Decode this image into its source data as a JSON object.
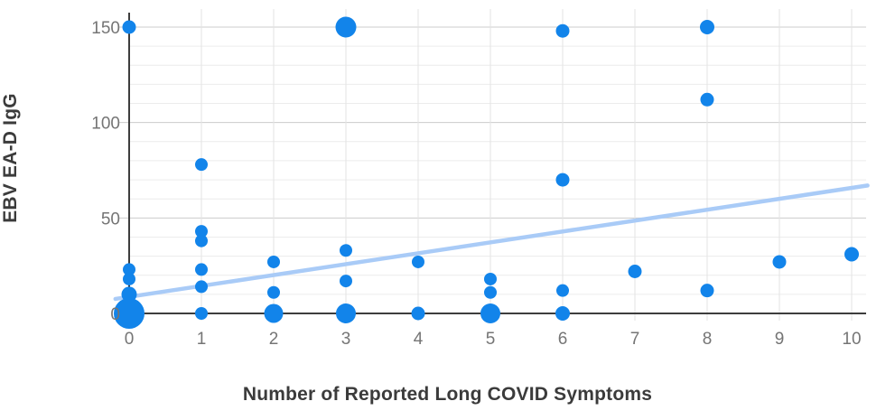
{
  "chart_data": {
    "type": "scatter",
    "title": "",
    "xlabel": "Number of Reported Long COVID Symptoms",
    "ylabel": "EBV EA-D IgG",
    "xlim": [
      -0.19,
      10.22
    ],
    "ylim": [
      0,
      159
    ],
    "x_ticks": [
      "0",
      "1",
      "2",
      "3",
      "4",
      "5",
      "6",
      "7",
      "8",
      "9",
      "10"
    ],
    "y_ticks": [
      "0",
      "50",
      "100",
      "150"
    ],
    "y_minor_step": 10,
    "grid": true,
    "legend": "none",
    "colors": {
      "point": "#1284ea",
      "trendline": "#a9cbf7",
      "axis_line": "#3d3d3d",
      "major_grid": "#cccccc",
      "minor_grid": "#ececec",
      "vertical_grid": "#e3e3e3",
      "tick_text": "#757575",
      "title_text": "#3b3b3b"
    },
    "points": [
      {
        "x": 0,
        "y": 150,
        "r": 7.5
      },
      {
        "x": 0,
        "y": 23,
        "r": 7
      },
      {
        "x": 0,
        "y": 18,
        "r": 7
      },
      {
        "x": 0,
        "y": 10,
        "r": 8.5
      },
      {
        "x": 0,
        "y": 0,
        "r": 17
      },
      {
        "x": 1,
        "y": 78,
        "r": 7
      },
      {
        "x": 1,
        "y": 43,
        "r": 7
      },
      {
        "x": 1,
        "y": 38,
        "r": 7
      },
      {
        "x": 1,
        "y": 23,
        "r": 7
      },
      {
        "x": 1,
        "y": 14,
        "r": 7
      },
      {
        "x": 1,
        "y": 0,
        "r": 7
      },
      {
        "x": 2,
        "y": 27,
        "r": 7
      },
      {
        "x": 2,
        "y": 11,
        "r": 7
      },
      {
        "x": 2,
        "y": 0,
        "r": 10.5
      },
      {
        "x": 3,
        "y": 150,
        "r": 11.5
      },
      {
        "x": 3,
        "y": 33,
        "r": 7
      },
      {
        "x": 3,
        "y": 17,
        "r": 7
      },
      {
        "x": 3,
        "y": 0,
        "r": 11
      },
      {
        "x": 4,
        "y": 27,
        "r": 7
      },
      {
        "x": 4,
        "y": 0,
        "r": 7.5
      },
      {
        "x": 5,
        "y": 18,
        "r": 7
      },
      {
        "x": 5,
        "y": 11,
        "r": 7
      },
      {
        "x": 5,
        "y": 0,
        "r": 11
      },
      {
        "x": 6,
        "y": 148,
        "r": 7.5
      },
      {
        "x": 6,
        "y": 70,
        "r": 7.5
      },
      {
        "x": 6,
        "y": 12,
        "r": 7
      },
      {
        "x": 6,
        "y": 0,
        "r": 8
      },
      {
        "x": 7,
        "y": 22,
        "r": 7.5
      },
      {
        "x": 8,
        "y": 150,
        "r": 8
      },
      {
        "x": 8,
        "y": 112,
        "r": 7.5
      },
      {
        "x": 8,
        "y": 12,
        "r": 7.5
      },
      {
        "x": 9,
        "y": 27,
        "r": 7.5
      },
      {
        "x": 10,
        "y": 31,
        "r": 8
      }
    ],
    "trendline": {
      "x1": -0.19,
      "y1": 7.6,
      "x2": 10.22,
      "y2": 67
    }
  }
}
